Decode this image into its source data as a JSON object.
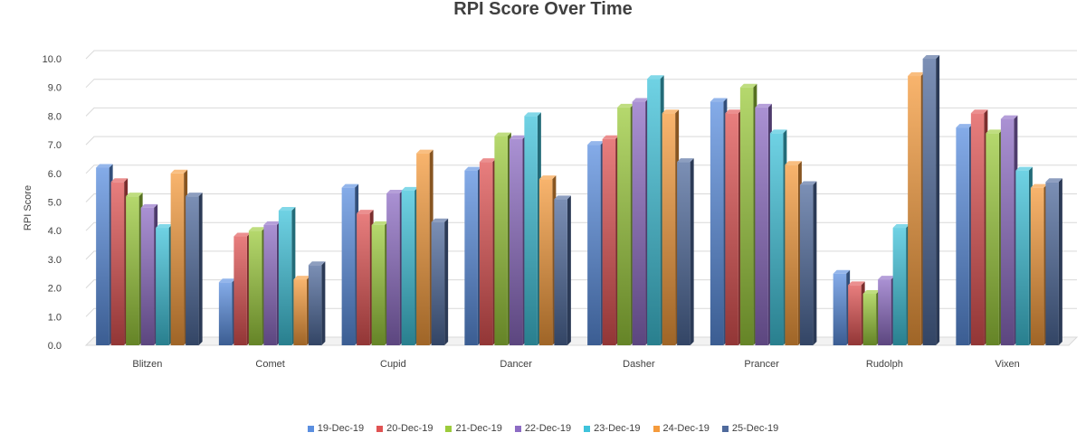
{
  "chart_data": {
    "type": "bar",
    "title": "RPI Score Over Time",
    "xlabel": "",
    "ylabel": "RPI Score",
    "ylim": [
      0,
      10
    ],
    "yticks": [
      "0.0",
      "1.0",
      "2.0",
      "3.0",
      "4.0",
      "5.0",
      "6.0",
      "7.0",
      "8.0",
      "9.0",
      "10.0"
    ],
    "grid": true,
    "legend_position": "bottom",
    "categories": [
      "Blitzen",
      "Comet",
      "Cupid",
      "Dancer",
      "Dasher",
      "Prancer",
      "Rudolph",
      "Vixen"
    ],
    "series": [
      {
        "name": "19-Dec-19",
        "color": "#5b8fe0",
        "values": [
          6.2,
          2.2,
          5.5,
          6.1,
          7.0,
          8.5,
          2.5,
          7.6
        ]
      },
      {
        "name": "20-Dec-19",
        "color": "#e05353",
        "values": [
          5.7,
          3.8,
          4.6,
          6.4,
          7.2,
          8.1,
          2.1,
          8.1
        ]
      },
      {
        "name": "21-Dec-19",
        "color": "#9ccb3c",
        "values": [
          5.2,
          4.0,
          4.2,
          7.3,
          8.3,
          9.0,
          1.8,
          7.4
        ]
      },
      {
        "name": "22-Dec-19",
        "color": "#8d6cc4",
        "values": [
          4.8,
          4.2,
          5.3,
          7.2,
          8.5,
          8.3,
          2.3,
          7.9
        ]
      },
      {
        "name": "23-Dec-19",
        "color": "#3fc3db",
        "values": [
          4.1,
          4.7,
          5.4,
          8.0,
          9.3,
          7.4,
          4.1,
          6.1
        ]
      },
      {
        "name": "24-Dec-19",
        "color": "#f59b3c",
        "values": [
          6.0,
          2.3,
          6.7,
          5.8,
          8.1,
          6.3,
          9.4,
          5.5
        ]
      },
      {
        "name": "25-Dec-19",
        "color": "#4f6a9c",
        "values": [
          5.2,
          2.8,
          4.3,
          5.1,
          6.4,
          5.6,
          10.0,
          5.7
        ]
      }
    ]
  }
}
